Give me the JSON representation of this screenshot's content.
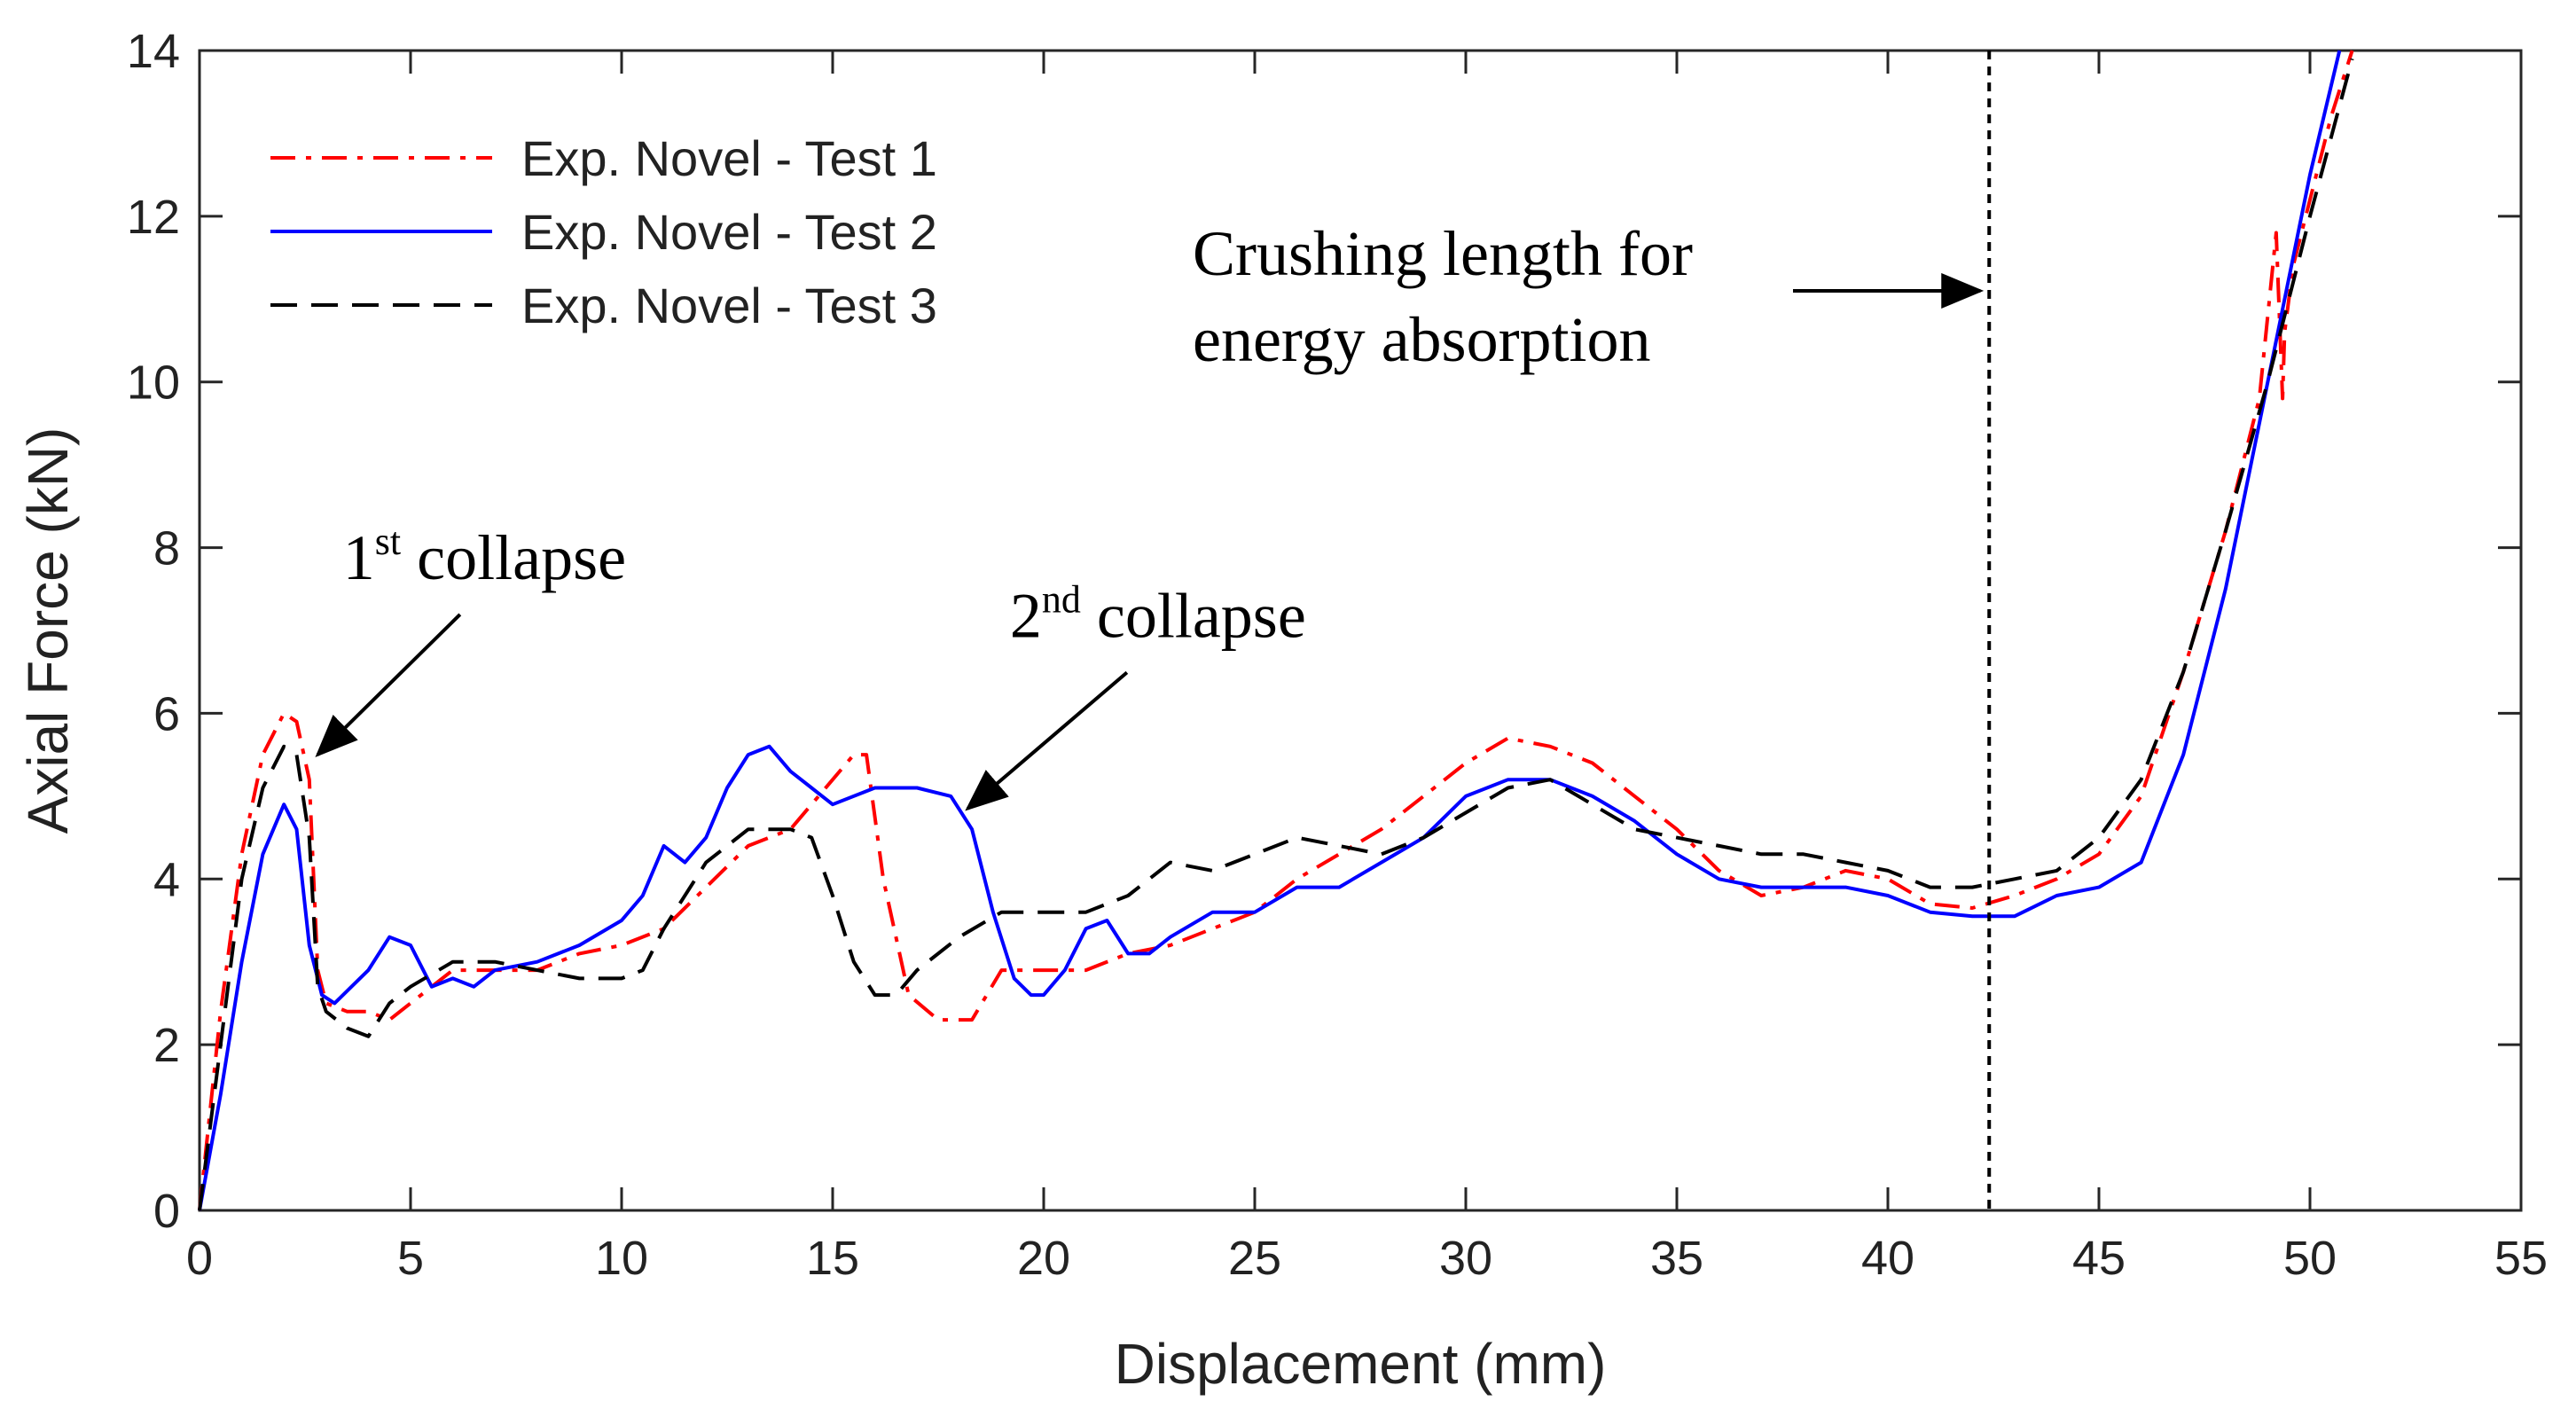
{
  "chart_data": {
    "type": "line",
    "xlabel": "Displacement (mm)",
    "ylabel": "Axial Force (kN)",
    "xlim": [
      0,
      55
    ],
    "ylim": [
      0,
      14
    ],
    "xticks": [
      0,
      5,
      10,
      15,
      20,
      25,
      30,
      35,
      40,
      45,
      50,
      55
    ],
    "yticks": [
      0,
      2,
      4,
      6,
      8,
      10,
      12,
      14
    ],
    "grid": false,
    "legend_position": "top-left",
    "series": [
      {
        "name": "Exp. Novel - Test 1",
        "color": "#ff0000",
        "style": "dash-dot",
        "x": [
          0,
          0.5,
          1,
          1.5,
          2,
          2.3,
          2.6,
          2.8,
          3,
          3.5,
          4,
          4.5,
          5,
          6,
          7,
          8,
          9,
          10,
          11,
          12,
          13,
          14,
          15,
          15.5,
          15.8,
          16.2,
          16.8,
          17.5,
          18.3,
          19,
          19.5,
          20,
          21,
          22,
          23,
          24,
          25,
          26,
          27,
          28,
          29,
          30,
          31,
          32,
          33,
          34,
          35,
          36,
          37,
          38,
          39,
          40,
          41,
          42,
          43,
          44,
          45,
          46,
          47,
          48,
          48.8,
          49.2,
          49.35,
          49.4,
          49.6,
          50,
          50.5,
          51
        ],
        "y": [
          0,
          2.4,
          4.3,
          5.5,
          6.0,
          5.9,
          5.2,
          2.9,
          2.5,
          2.4,
          2.4,
          2.3,
          2.5,
          2.9,
          2.9,
          2.9,
          3.1,
          3.2,
          3.4,
          3.9,
          4.4,
          4.6,
          5.2,
          5.5,
          5.5,
          4.0,
          2.6,
          2.3,
          2.3,
          2.9,
          2.9,
          2.9,
          2.9,
          3.1,
          3.2,
          3.4,
          3.6,
          4.0,
          4.3,
          4.6,
          5.0,
          5.4,
          5.7,
          5.6,
          5.4,
          5.0,
          4.6,
          4.1,
          3.8,
          3.9,
          4.1,
          4.0,
          3.7,
          3.65,
          3.8,
          4.0,
          4.3,
          5.0,
          6.5,
          8.2,
          9.8,
          11.8,
          9.8,
          10.6,
          11.4,
          12.2,
          13.2,
          14.0
        ]
      },
      {
        "name": "Exp. Novel - Test 2",
        "color": "#0000ff",
        "style": "solid",
        "x": [
          0,
          0.5,
          1,
          1.5,
          2,
          2.3,
          2.6,
          2.9,
          3.2,
          3.6,
          4,
          4.5,
          5,
          5.5,
          6,
          6.5,
          7,
          8,
          9,
          10,
          10.5,
          11,
          11.5,
          12,
          12.5,
          13,
          13.5,
          14,
          14.5,
          15,
          16,
          17,
          17.8,
          18.3,
          18.8,
          19.3,
          19.7,
          20,
          20.5,
          21,
          21.5,
          22,
          22.5,
          23,
          24,
          25,
          26,
          27,
          28,
          29,
          30,
          31,
          32,
          33,
          34,
          35,
          36,
          37,
          38,
          39,
          40,
          41,
          42,
          42.5,
          43,
          44,
          45,
          46,
          47,
          48,
          49,
          50,
          50.7
        ],
        "y": [
          0,
          1.4,
          3.0,
          4.3,
          4.9,
          4.6,
          3.2,
          2.6,
          2.5,
          2.7,
          2.9,
          3.3,
          3.2,
          2.7,
          2.8,
          2.7,
          2.9,
          3.0,
          3.2,
          3.5,
          3.8,
          4.4,
          4.2,
          4.5,
          5.1,
          5.5,
          5.6,
          5.3,
          5.1,
          4.9,
          5.1,
          5.1,
          5.0,
          4.6,
          3.6,
          2.8,
          2.6,
          2.6,
          2.9,
          3.4,
          3.5,
          3.1,
          3.1,
          3.3,
          3.6,
          3.6,
          3.9,
          3.9,
          4.2,
          4.5,
          5.0,
          5.2,
          5.2,
          5.0,
          4.7,
          4.3,
          4.0,
          3.9,
          3.9,
          3.9,
          3.8,
          3.6,
          3.55,
          3.55,
          3.55,
          3.8,
          3.9,
          4.2,
          5.5,
          7.5,
          10.0,
          12.5,
          14.0
        ]
      },
      {
        "name": "Exp. Novel - Test 3",
        "color": "#000000",
        "style": "dashed",
        "x": [
          0,
          0.5,
          1,
          1.5,
          2,
          2.3,
          2.6,
          2.8,
          3,
          3.5,
          4,
          4.5,
          5,
          6,
          7,
          8,
          9,
          10,
          10.5,
          11,
          12,
          13,
          14,
          14.5,
          15,
          15.5,
          16,
          16.5,
          17,
          18,
          19,
          20,
          21,
          22,
          23,
          24,
          25,
          26,
          27,
          28,
          29,
          30,
          31,
          32,
          33,
          34,
          35,
          36,
          37,
          38,
          39,
          40,
          41,
          42,
          43,
          44,
          45,
          46,
          47,
          48,
          49,
          50,
          51
        ],
        "y": [
          0,
          2.0,
          4.0,
          5.1,
          5.6,
          5.5,
          4.5,
          2.7,
          2.4,
          2.2,
          2.1,
          2.5,
          2.7,
          3.0,
          3.0,
          2.9,
          2.8,
          2.8,
          2.9,
          3.4,
          4.2,
          4.6,
          4.6,
          4.5,
          3.8,
          3.0,
          2.6,
          2.6,
          2.9,
          3.3,
          3.6,
          3.6,
          3.6,
          3.8,
          4.2,
          4.1,
          4.3,
          4.5,
          4.4,
          4.3,
          4.5,
          4.8,
          5.1,
          5.2,
          4.9,
          4.6,
          4.5,
          4.4,
          4.3,
          4.3,
          4.2,
          4.1,
          3.9,
          3.9,
          4.0,
          4.1,
          4.5,
          5.2,
          6.5,
          8.2,
          10.0,
          12.0,
          13.9
        ]
      }
    ],
    "reference_line": {
      "x": 42.4,
      "style": "dotted",
      "color": "#000000"
    },
    "annotations": [
      {
        "text_main": "1",
        "text_sup": "st",
        "text_rest": " collapse",
        "xy": [
          2.8,
          5.5
        ],
        "xytext": [
          5.5,
          7.3
        ]
      },
      {
        "text_main": "2",
        "text_sup": "nd",
        "text_rest": " collapse",
        "xy": [
          18.2,
          4.85
        ],
        "xytext": [
          21.3,
          6.6
        ]
      },
      {
        "text_line1": "Crushing length for",
        "text_line2": "energy absorption",
        "xy": [
          42.4,
          11.1
        ],
        "xytext": [
          37.8,
          11.1
        ]
      }
    ]
  }
}
